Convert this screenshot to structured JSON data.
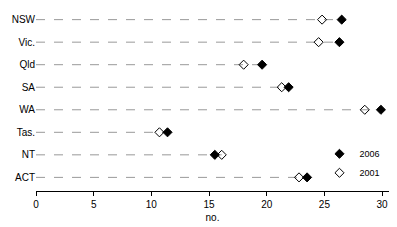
{
  "chart_data": {
    "type": "dot",
    "orientation": "horizontal",
    "categories": [
      "NSW",
      "Vic.",
      "Qld",
      "SA",
      "WA",
      "Tas.",
      "NT",
      "ACT"
    ],
    "series": [
      {
        "name": "2006",
        "color": "#000000",
        "marker": "diamond",
        "values": [
          26.5,
          26.3,
          19.6,
          21.9,
          29.9,
          11.4,
          15.5,
          23.5
        ]
      },
      {
        "name": "2001",
        "color": "#000000",
        "marker": "diamond-open",
        "values": [
          24.8,
          24.5,
          18.0,
          21.3,
          28.5,
          10.7,
          16.1,
          22.8
        ]
      }
    ],
    "xlabel": "no.",
    "xlim": [
      0,
      30.6
    ],
    "xticks": [
      0,
      5,
      10,
      15,
      20,
      25,
      30
    ],
    "grid": false,
    "legend": "lower right"
  }
}
